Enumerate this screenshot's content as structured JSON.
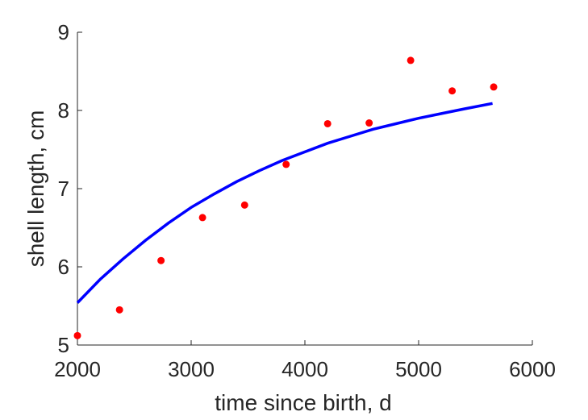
{
  "chart_data": {
    "type": "scatter",
    "xlabel": "time since birth, d",
    "ylabel": "shell length, cm",
    "xlim": [
      2000,
      6000
    ],
    "ylim": [
      5,
      9
    ],
    "xticks": [
      2000,
      3000,
      4000,
      5000,
      6000
    ],
    "yticks": [
      5,
      6,
      7,
      8,
      9
    ],
    "grid": false,
    "series": [
      {
        "kind": "points",
        "color": "#ff0000",
        "x": [
          2000,
          2370,
          2735,
          3100,
          3470,
          3835,
          4200,
          4565,
          4930,
          5295,
          5660
        ],
        "y": [
          5.12,
          5.45,
          6.08,
          6.63,
          6.79,
          7.31,
          7.83,
          7.84,
          8.64,
          8.25,
          8.3
        ]
      },
      {
        "kind": "line",
        "color": "#0000ff",
        "x": [
          2000,
          2200,
          2400,
          2600,
          2800,
          3000,
          3200,
          3400,
          3600,
          3800,
          4000,
          4200,
          4400,
          4600,
          4800,
          5000,
          5200,
          5400,
          5650
        ],
        "y": [
          5.54,
          5.84,
          6.1,
          6.34,
          6.56,
          6.76,
          6.93,
          7.09,
          7.23,
          7.36,
          7.47,
          7.58,
          7.67,
          7.76,
          7.83,
          7.9,
          7.96,
          8.02,
          8.09
        ]
      }
    ]
  }
}
